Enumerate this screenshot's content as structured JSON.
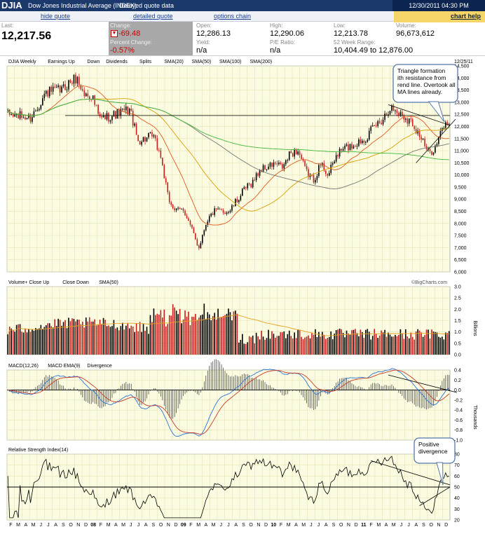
{
  "header": {
    "symbol": "DJIA",
    "name": "Dow Jones Industrial Average (INDEX)",
    "delay": "Delayed quote data",
    "datetime": "12/30/2011 04:30 PM"
  },
  "links": {
    "hide": "hide quote",
    "detailed": "detailed quote",
    "options": "options chain",
    "help": "chart help"
  },
  "quote": {
    "last_label": "Last:",
    "last": "12,217.56",
    "change_label": "Change:",
    "change": "-69.48",
    "pct_label": "Percent Change:",
    "pct": "-0.57%",
    "open_label": "Open:",
    "open": "12,286.13",
    "yield_label": "Yield:",
    "yield": "n/a",
    "high_label": "High:",
    "high": "12,290.06",
    "pe_label": "P/E Ratio:",
    "pe": "n/a",
    "low_label": "Low:",
    "low": "12,213.78",
    "range_label": "52 Week Range:",
    "range": "10,404.49 to 12,876.00",
    "vol_label": "Volume:",
    "vol": "96,673,612"
  },
  "colors": {
    "sma20": "#2a74d6",
    "sma50": "#e05a1c",
    "sma100": "#f2c21a",
    "sma200": "#41b83a",
    "up": "#000000",
    "down": "#c81e1e",
    "panel": "#fbfbe2",
    "grid": "#e5e3b4"
  },
  "legends": {
    "price": [
      "DJIA Weekly",
      "Earnings Up",
      "Down",
      "Dividends",
      "Splits",
      "SMA(20)",
      "SMA(50)",
      "SMA(100)",
      "SMA(200)"
    ],
    "volume": [
      "Volume+ Close Up",
      "Close Down",
      "SMA(50)"
    ],
    "macd": [
      "MACD(12,26)",
      "MACD EMA(9)",
      "Divergence"
    ],
    "rsi": [
      "Relative Strength Index(14)"
    ]
  },
  "date_label": "12/25/11",
  "watermark": "©BigCharts.com",
  "volume_unit": "Billions",
  "macd_unit": "Thousands",
  "annotations": {
    "triangle": "Triangle formation with resistance from trend line. Overtook all MA lines already.",
    "divergence": "Positive divergence"
  },
  "chart_data": [
    {
      "type": "candlestick",
      "name": "DJIA Weekly",
      "ylim": [
        6000,
        14500
      ],
      "yticks": [
        6000,
        6500,
        7000,
        7500,
        8000,
        8500,
        9000,
        9500,
        10000,
        10500,
        11000,
        11500,
        12000,
        12500,
        13000,
        13500,
        14000,
        14500
      ],
      "x_ticks": [
        "F",
        "M",
        "A",
        "M",
        "J",
        "J",
        "A",
        "S",
        "O",
        "N",
        "D",
        "08",
        "F",
        "M",
        "A",
        "M",
        "J",
        "J",
        "A",
        "S",
        "O",
        "N",
        "D",
        "09",
        "F",
        "M",
        "A",
        "M",
        "J",
        "J",
        "A",
        "S",
        "O",
        "N",
        "D",
        "10",
        "F",
        "M",
        "A",
        "M",
        "J",
        "J",
        "A",
        "S",
        "O",
        "N",
        "D",
        "11",
        "F",
        "M",
        "A",
        "M",
        "J",
        "J",
        "A",
        "S",
        "O",
        "N",
        "D"
      ],
      "anchors_month_close": [
        [
          0,
          12500
        ],
        [
          3,
          12350
        ],
        [
          5,
          13400
        ],
        [
          7,
          13500
        ],
        [
          8,
          13800
        ],
        [
          9,
          14000
        ],
        [
          10,
          13300
        ],
        [
          11,
          13300
        ],
        [
          12,
          12300
        ],
        [
          13,
          12400
        ],
        [
          15,
          12600
        ],
        [
          16,
          12700
        ],
        [
          17,
          11400
        ],
        [
          19,
          11600
        ],
        [
          20,
          10800
        ],
        [
          21,
          9000
        ],
        [
          22,
          8500
        ],
        [
          23,
          8600
        ],
        [
          24,
          7800
        ],
        [
          25,
          7000
        ],
        [
          26,
          8100
        ],
        [
          27,
          8500
        ],
        [
          28,
          8500
        ],
        [
          29,
          8500
        ],
        [
          31,
          9400
        ],
        [
          32,
          9700
        ],
        [
          33,
          10200
        ],
        [
          35,
          10450
        ],
        [
          36,
          10300
        ],
        [
          37,
          10900
        ],
        [
          38,
          11000
        ],
        [
          39,
          10150
        ],
        [
          40,
          9800
        ],
        [
          41,
          10450
        ],
        [
          42,
          10000
        ],
        [
          43,
          10800
        ],
        [
          44,
          11100
        ],
        [
          45,
          11200
        ],
        [
          47,
          11580
        ],
        [
          48,
          12000
        ],
        [
          49,
          12300
        ],
        [
          50,
          12800
        ],
        [
          51,
          12600
        ],
        [
          52,
          12400
        ],
        [
          53,
          12150
        ],
        [
          54,
          11600
        ],
        [
          55,
          10900
        ],
        [
          56,
          11150
        ],
        [
          57,
          12000
        ],
        [
          58,
          12250
        ]
      ],
      "sma": {
        "SMA(20)": "weekly 20-period",
        "SMA(50)": "weekly 50-period",
        "SMA(100)": "weekly 100-period",
        "SMA(200)": "weekly 200-period"
      }
    },
    {
      "type": "bar",
      "name": "Volume",
      "ylim": [
        0,
        3.0
      ],
      "yticks": [
        0,
        0.5,
        1.0,
        1.5,
        2.0,
        2.5,
        3.0
      ],
      "unit": "Billions"
    },
    {
      "type": "line",
      "name": "MACD",
      "ylim": [
        -1.0,
        0.4
      ],
      "yticks": [
        -1.0,
        -0.8,
        -0.6,
        -0.4,
        -0.2,
        0,
        0.2,
        0.4
      ],
      "unit": "Thousands"
    },
    {
      "type": "line",
      "name": "RSI",
      "ylim": [
        20,
        80
      ],
      "yticks": [
        20,
        30,
        40,
        50,
        60,
        70,
        80
      ],
      "ref": 50
    }
  ]
}
